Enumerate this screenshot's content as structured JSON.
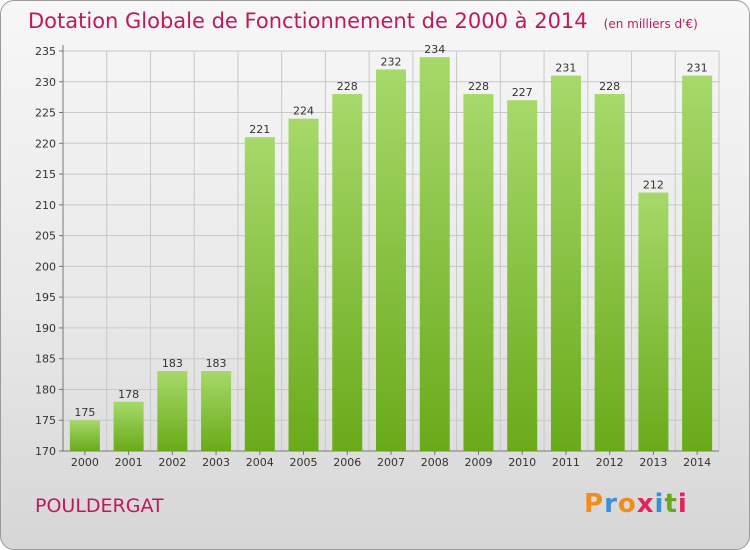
{
  "title": "Dotation Globale de Fonctionnement de 2000 à 2014",
  "unit": "(en milliers d'€)",
  "commune": "POULDERGAT",
  "logo": [
    "P",
    "r",
    "o",
    "x",
    "i",
    "t",
    "i"
  ],
  "colors": {
    "title": "#c2185b",
    "bar_top": "#a6d96a",
    "bar_bottom": "#6aaa1a",
    "logo": [
      "#f28c1a",
      "#3a8fd4",
      "#f28c1a",
      "#e0245e",
      "#3a8fd4",
      "#6aaa1a",
      "#e0245e"
    ]
  },
  "chart_data": {
    "type": "bar",
    "title": "Dotation Globale de Fonctionnement de 2000 à 2014",
    "subtitle": "(en milliers d'€)",
    "categories": [
      "2000",
      "2001",
      "2002",
      "2003",
      "2004",
      "2005",
      "2006",
      "2007",
      "2008",
      "2009",
      "2010",
      "2011",
      "2012",
      "2013",
      "2014"
    ],
    "values": [
      175,
      178,
      183,
      183,
      221,
      224,
      228,
      232,
      234,
      228,
      227,
      231,
      228,
      212,
      231
    ],
    "ylim": [
      170,
      235
    ],
    "yticks": [
      170,
      175,
      180,
      185,
      190,
      195,
      200,
      205,
      210,
      215,
      220,
      225,
      230,
      235
    ],
    "grid": true,
    "data_labels": true
  }
}
